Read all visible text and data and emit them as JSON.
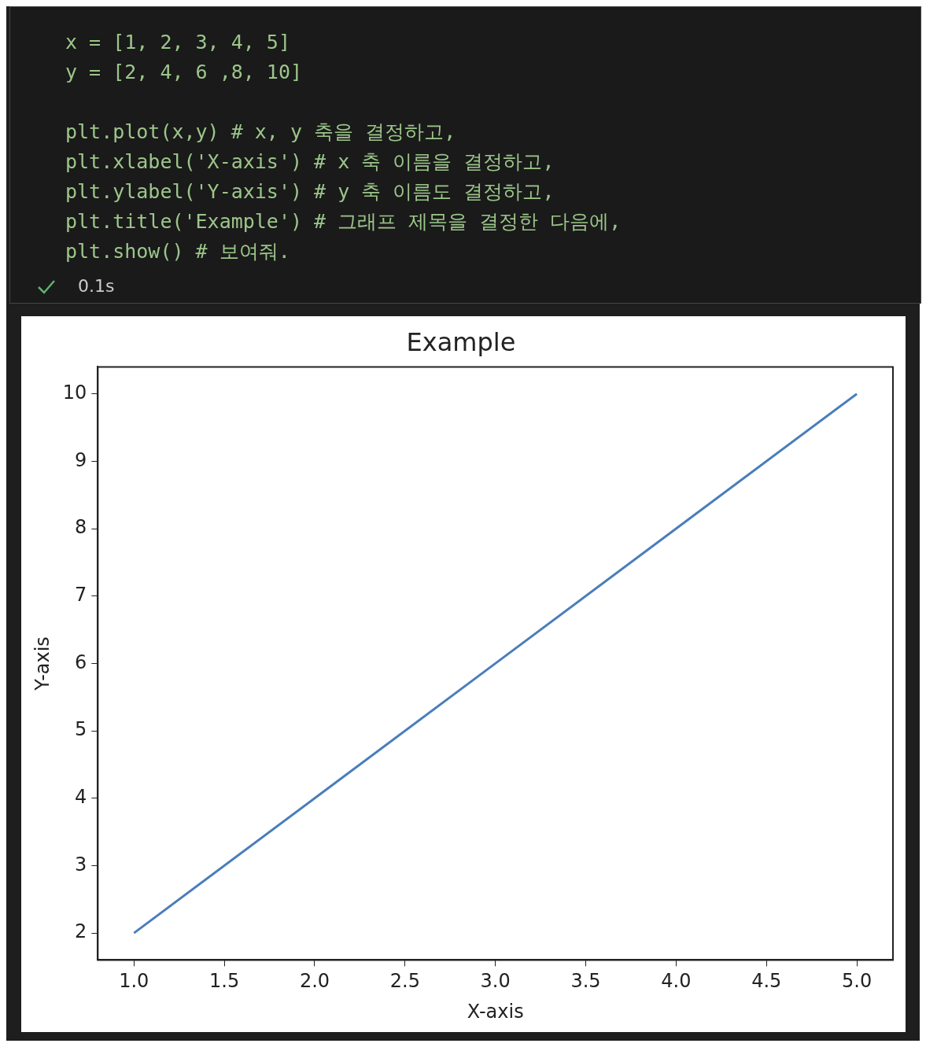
{
  "chart_data": {
    "type": "line",
    "title": "Example",
    "xlabel": "X-axis",
    "ylabel": "Y-axis",
    "x": [
      1,
      2,
      3,
      4,
      5
    ],
    "series": [
      {
        "color": "#4a7ebb",
        "values": [
          2,
          4,
          6,
          8,
          10
        ]
      }
    ],
    "xlim": [
      0.8,
      5.2
    ],
    "xticks": [
      {
        "value": 1,
        "label": "1.0"
      },
      {
        "value": 1.5,
        "label": "1.5"
      },
      {
        "value": 2,
        "label": "2.0"
      },
      {
        "value": 2.5,
        "label": "2.5"
      },
      {
        "value": 3,
        "label": "3.0"
      },
      {
        "value": 3.5,
        "label": "3.5"
      },
      {
        "value": 4,
        "label": "4.0"
      },
      {
        "value": 4.5,
        "label": "4.5"
      },
      {
        "value": 5,
        "label": "5.0"
      }
    ],
    "ylim": [
      1.6,
      10.4
    ],
    "yticks": [
      2,
      3,
      4,
      5,
      6,
      7,
      8,
      9,
      10
    ],
    "grid": false,
    "legend": false,
    "annotations": [
      "x = [1, 2, 3, 4, 5]",
      "y = [2, 4, 6 ,8, 10]",
      "plt.plot(x,y) # x, y 축을 결정하고,",
      "plt.xlabel('X-axis') # x 축 이름을 결정하고,",
      "plt.ylabel('Y-axis') # y 축 이름도 결정하고,",
      "plt.title('Example') # 그래프 제목을 결정한 다음에,",
      "plt.show() # 보여줘.",
      "0.1s"
    ]
  }
}
